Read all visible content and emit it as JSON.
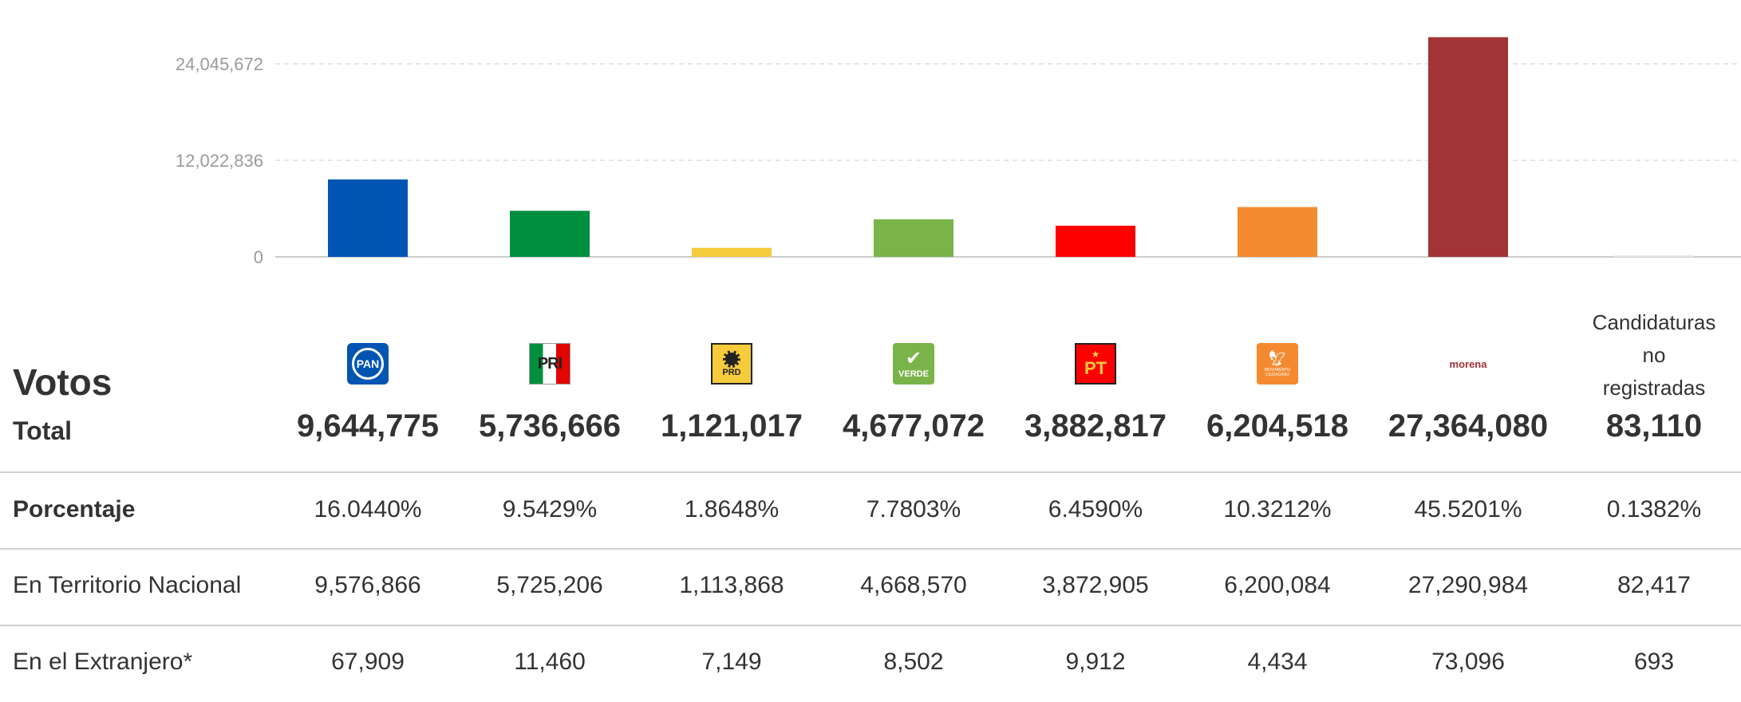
{
  "chart_data": {
    "type": "bar",
    "categories": [
      "PAN",
      "PRI",
      "PRD",
      "VERDE",
      "PT",
      "MOVIMIENTO CIUDADANO",
      "morena",
      "Candidaturas no registradas"
    ],
    "values": [
      9644775,
      5736666,
      1121017,
      4677072,
      3882817,
      6204518,
      27364080,
      83110
    ],
    "colors": [
      "#0055b3",
      "#008f3e",
      "#f6cb3c",
      "#7ab34a",
      "#ff0000",
      "#f48a2f",
      "#a23336",
      "#e8e8e8"
    ],
    "ytick_labels": [
      "0",
      "12,022,836",
      "24,045,672"
    ],
    "yticks": [
      0,
      12022836,
      24045672
    ],
    "ylim": [
      0,
      28000000
    ],
    "grid": true
  },
  "table": {
    "votos_label": "Votos",
    "total_label": "Total",
    "totals": [
      "9,644,775",
      "5,736,666",
      "1,121,017",
      "4,677,072",
      "3,882,817",
      "6,204,518",
      "27,364,080",
      "83,110"
    ],
    "candidaturas_label": [
      "Candidaturas",
      "no",
      "registradas"
    ],
    "logos": [
      {
        "icon": "pan-logo-icon",
        "text": "PAN"
      },
      {
        "icon": "pri-logo-icon",
        "text": "PRI"
      },
      {
        "icon": "prd-logo-icon",
        "text": "PRD"
      },
      {
        "icon": "verde-logo-icon",
        "text": "VERDE"
      },
      {
        "icon": "pt-logo-icon",
        "text": "PT"
      },
      {
        "icon": "movimiento-ciudadano-logo-icon",
        "text": "MOVIMIENTO CIUDADANO"
      },
      {
        "icon": "morena-logo-icon",
        "text": "morena"
      }
    ],
    "rows": [
      {
        "label": "Porcentaje",
        "values": [
          "16.0440%",
          "9.5429%",
          "1.8648%",
          "7.7803%",
          "6.4590%",
          "10.3212%",
          "45.5201%",
          "0.1382%"
        ]
      },
      {
        "label": "En Territorio Nacional",
        "values": [
          "9,576,866",
          "5,725,206",
          "1,113,868",
          "4,668,570",
          "3,872,905",
          "6,200,084",
          "27,290,984",
          "82,417"
        ]
      },
      {
        "label": "En el Extranjero*",
        "values": [
          "67,909",
          "11,460",
          "7,149",
          "8,502",
          "9,912",
          "4,434",
          "73,096",
          "693"
        ]
      }
    ]
  }
}
